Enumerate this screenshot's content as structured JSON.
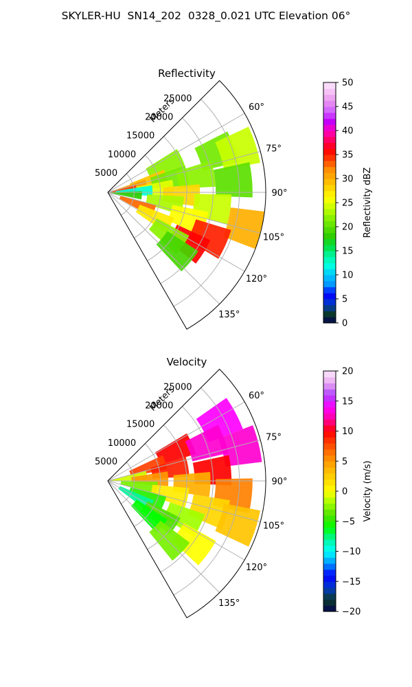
{
  "figure": {
    "title": "SKYLER-HU  SN14_202  0328_0.021 UTC Elevation 06°"
  },
  "chart_data": [
    {
      "type": "heatmap",
      "subtype": "polar-sector (PPI radar scan)",
      "title": "Reflectivity",
      "range_axis_label": "Meters",
      "range_ticks": [
        5000,
        10000,
        15000,
        20000,
        25000
      ],
      "range_tick_labels": [
        "5000",
        "10000",
        "15000",
        "20000",
        "25000"
      ],
      "range_max": 30000,
      "azimuth_ticks": [
        60,
        75,
        90,
        105,
        120,
        135
      ],
      "azimuth_tick_labels": [
        "60°",
        "75°",
        "90°",
        "105°",
        "120°",
        "135°"
      ],
      "azimuth_range": [
        45,
        150
      ],
      "grid": true,
      "colorbar": {
        "label": "Reflectivity dBZ",
        "min": 0,
        "max": 50,
        "ticks": [
          0,
          5,
          10,
          15,
          20,
          25,
          30,
          35,
          40,
          45,
          50
        ],
        "tick_labels": [
          "0",
          "5",
          "10",
          "15",
          "20",
          "25",
          "30",
          "35",
          "40",
          "45",
          "50"
        ],
        "stops": [
          {
            "v": 0,
            "c": "#04034f"
          },
          {
            "v": 2,
            "c": "#0b3b2b"
          },
          {
            "v": 4,
            "c": "#003ccc"
          },
          {
            "v": 6,
            "c": "#0000ff"
          },
          {
            "v": 8,
            "c": "#0096ff"
          },
          {
            "v": 10,
            "c": "#00c8ff"
          },
          {
            "v": 12,
            "c": "#00ffe0"
          },
          {
            "v": 14,
            "c": "#00f5a0"
          },
          {
            "v": 16,
            "c": "#00e040"
          },
          {
            "v": 18,
            "c": "#2ecc00"
          },
          {
            "v": 20,
            "c": "#5ce000"
          },
          {
            "v": 22,
            "c": "#8cf200"
          },
          {
            "v": 24,
            "c": "#c8ff00"
          },
          {
            "v": 26,
            "c": "#ffff00"
          },
          {
            "v": 28,
            "c": "#ffd700"
          },
          {
            "v": 30,
            "c": "#ffb000"
          },
          {
            "v": 32,
            "c": "#ff8c00"
          },
          {
            "v": 34,
            "c": "#ff4000"
          },
          {
            "v": 36,
            "c": "#ff0000"
          },
          {
            "v": 38,
            "c": "#ff0060"
          },
          {
            "v": 40,
            "c": "#ff00c0"
          },
          {
            "v": 42,
            "c": "#c000ff"
          },
          {
            "v": 44,
            "c": "#d060ff"
          },
          {
            "v": 46,
            "c": "#e890f0"
          },
          {
            "v": 48,
            "c": "#f4c0f4"
          },
          {
            "v": 50,
            "c": "#fce8fc"
          }
        ]
      },
      "cells": [
        {
          "az": 65,
          "r": 12000,
          "v": 22
        },
        {
          "az": 70,
          "r": 22000,
          "v": 21
        },
        {
          "az": 72,
          "r": 26000,
          "v": 24
        },
        {
          "az": 75,
          "r": 8000,
          "v": 29
        },
        {
          "az": 78,
          "r": 4000,
          "v": 31
        },
        {
          "az": 78,
          "r": 12000,
          "v": 21
        },
        {
          "az": 80,
          "r": 17000,
          "v": 22
        },
        {
          "az": 82,
          "r": 2000,
          "v": 34
        },
        {
          "az": 85,
          "r": 24000,
          "v": 20
        },
        {
          "az": 86,
          "r": 9000,
          "v": 25
        },
        {
          "az": 88,
          "r": 5000,
          "v": 12
        },
        {
          "az": 92,
          "r": 14000,
          "v": 28
        },
        {
          "az": 95,
          "r": 3000,
          "v": 18
        },
        {
          "az": 98,
          "r": 20000,
          "v": 24
        },
        {
          "az": 100,
          "r": 11000,
          "v": 23
        },
        {
          "az": 104,
          "r": 27000,
          "v": 30
        },
        {
          "az": 108,
          "r": 16000,
          "v": 26
        },
        {
          "az": 112,
          "r": 6000,
          "v": 33
        },
        {
          "az": 114,
          "r": 21000,
          "v": 35
        },
        {
          "az": 118,
          "r": 10000,
          "v": 27
        },
        {
          "az": 122,
          "r": 18000,
          "v": 36
        },
        {
          "az": 125,
          "r": 14000,
          "v": 22
        },
        {
          "az": 130,
          "r": 17000,
          "v": 19
        }
      ]
    },
    {
      "type": "heatmap",
      "subtype": "polar-sector (PPI radar scan)",
      "title": "Velocity",
      "range_axis_label": "Meters",
      "range_ticks": [
        5000,
        10000,
        15000,
        20000,
        25000
      ],
      "range_tick_labels": [
        "5000",
        "10000",
        "15000",
        "20000",
        "25000"
      ],
      "range_max": 30000,
      "azimuth_ticks": [
        60,
        75,
        90,
        105,
        120,
        135
      ],
      "azimuth_tick_labels": [
        "60°",
        "75°",
        "90°",
        "105°",
        "120°",
        "135°"
      ],
      "azimuth_range": [
        45,
        150
      ],
      "grid": true,
      "colorbar": {
        "label": "Velocity (m/s)",
        "min": -20,
        "max": 20,
        "ticks": [
          -20,
          -15,
          -10,
          -5,
          0,
          5,
          10,
          15,
          20
        ],
        "tick_labels": [
          "−20",
          "−15",
          "−10",
          "−5",
          "0",
          "5",
          "10",
          "15",
          "20"
        ],
        "stops": [
          {
            "v": -20,
            "c": "#04034f"
          },
          {
            "v": -18,
            "c": "#0b3b2b"
          },
          {
            "v": -16,
            "c": "#003ccc"
          },
          {
            "v": -14,
            "c": "#0000ff"
          },
          {
            "v": -12,
            "c": "#0096ff"
          },
          {
            "v": -10,
            "c": "#00ffff"
          },
          {
            "v": -8,
            "c": "#00f5a0"
          },
          {
            "v": -6,
            "c": "#00ff00"
          },
          {
            "v": -4,
            "c": "#4ee000"
          },
          {
            "v": -2,
            "c": "#a0ff00"
          },
          {
            "v": 0,
            "c": "#ffff00"
          },
          {
            "v": 2,
            "c": "#ffd700"
          },
          {
            "v": 4,
            "c": "#ffb000"
          },
          {
            "v": 6,
            "c": "#ff8000"
          },
          {
            "v": 8,
            "c": "#ff4000"
          },
          {
            "v": 10,
            "c": "#ff0000"
          },
          {
            "v": 12,
            "c": "#ff00a0"
          },
          {
            "v": 14,
            "c": "#ff00ff"
          },
          {
            "v": 16,
            "c": "#b040ff"
          },
          {
            "v": 18,
            "c": "#e8a8f0"
          },
          {
            "v": 20,
            "c": "#fce8fc"
          }
        ]
      },
      "cells": [
        {
          "az": 62,
          "r": 24000,
          "v": 14
        },
        {
          "az": 66,
          "r": 14000,
          "v": 10
        },
        {
          "az": 70,
          "r": 20000,
          "v": 13
        },
        {
          "az": 72,
          "r": 8000,
          "v": 8
        },
        {
          "az": 76,
          "r": 26000,
          "v": 13
        },
        {
          "az": 80,
          "r": 12000,
          "v": 9
        },
        {
          "az": 82,
          "r": 4000,
          "v": -1
        },
        {
          "az": 85,
          "r": 20000,
          "v": 10
        },
        {
          "az": 88,
          "r": 8000,
          "v": 5
        },
        {
          "az": 92,
          "r": 16000,
          "v": 4
        },
        {
          "az": 96,
          "r": 24000,
          "v": 6
        },
        {
          "az": 98,
          "r": 6000,
          "v": -3
        },
        {
          "az": 102,
          "r": 12000,
          "v": 1
        },
        {
          "az": 106,
          "r": 20000,
          "v": 2
        },
        {
          "az": 108,
          "r": 26000,
          "v": 3
        },
        {
          "az": 112,
          "r": 8000,
          "v": -5
        },
        {
          "az": 116,
          "r": 16000,
          "v": -2
        },
        {
          "az": 120,
          "r": 6000,
          "v": -8
        },
        {
          "az": 124,
          "r": 12000,
          "v": -4
        },
        {
          "az": 126,
          "r": 20000,
          "v": 0
        },
        {
          "az": 130,
          "r": 10000,
          "v": -6
        },
        {
          "az": 134,
          "r": 16000,
          "v": -3
        }
      ]
    }
  ]
}
